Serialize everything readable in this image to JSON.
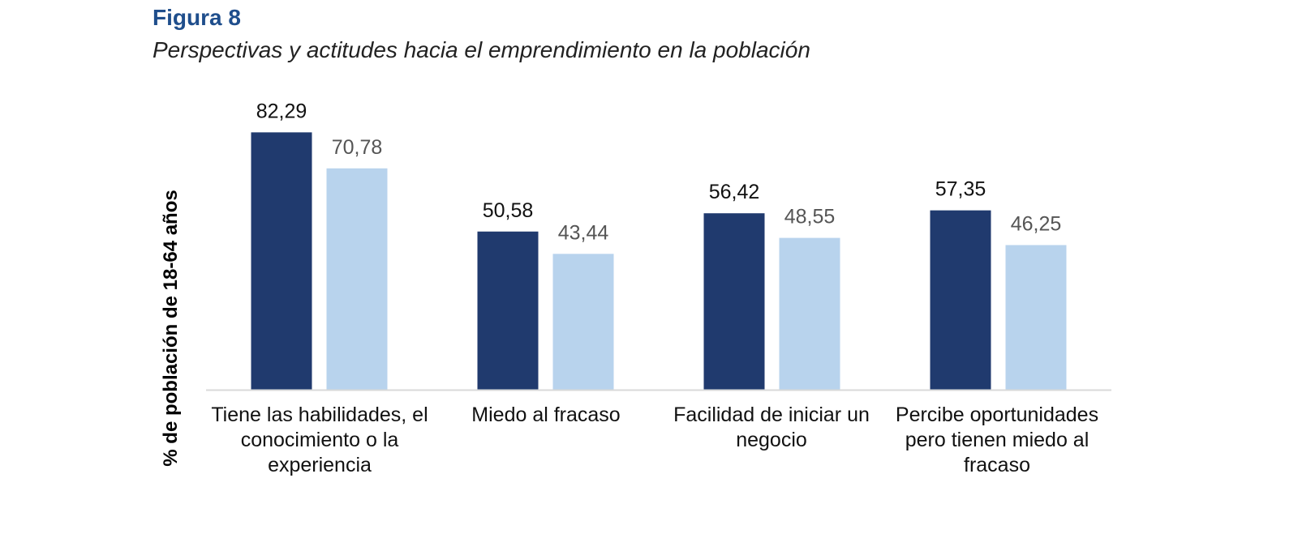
{
  "figure": {
    "label": "Figura 8",
    "title": "Perspectivas y actitudes hacia el emprendimiento en la población"
  },
  "colors": {
    "series_dark": "#203a6e",
    "series_light": "#b8d3ed",
    "axis": "#d9d9d9",
    "value_dark": "#111111",
    "value_light": "#555555"
  },
  "chart_data": {
    "type": "bar",
    "title": "Perspectivas y actitudes hacia el emprendimiento en la población",
    "xlabel": "",
    "ylabel": "% de población de 18-64 años",
    "ylim": [
      0,
      90
    ],
    "grid": false,
    "legend": "none",
    "categories": [
      "Tiene las habilidades, el conocimiento o la experiencia",
      "Miedo al fracaso",
      "Facilidad de iniciar un negocio",
      "Percibe oportunidades pero tienen miedo al fracaso"
    ],
    "series": [
      {
        "values": [
          82.29,
          50.58,
          56.42,
          57.35
        ],
        "labels": [
          "82,29",
          "50,58",
          "56,42",
          "57,35"
        ]
      },
      {
        "values": [
          70.78,
          43.44,
          48.55,
          46.25
        ],
        "labels": [
          "70,78",
          "43,44",
          "48,55",
          "46,25"
        ]
      }
    ]
  }
}
